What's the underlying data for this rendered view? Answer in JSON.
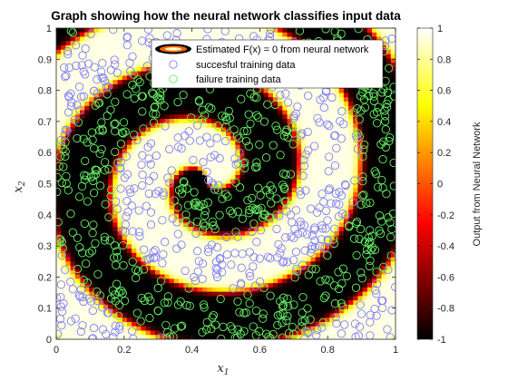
{
  "chart_data": {
    "type": "contour",
    "title": "Graph showing how the neural network classifies input data",
    "xlabel": "x",
    "xlabel_sub": "1",
    "ylabel": "x",
    "ylabel_sub": "2",
    "xlim": [
      0,
      1
    ],
    "ylim": [
      0,
      1
    ],
    "xticks": [
      0,
      0.2,
      0.4,
      0.6,
      0.8,
      1
    ],
    "xtick_labels": [
      "0",
      "0.2",
      "0.4",
      "0.6",
      "0.8",
      "1"
    ],
    "yticks": [
      0,
      0.1,
      0.2,
      0.3,
      0.4,
      0.5,
      0.6,
      0.7,
      0.8,
      0.9,
      1
    ],
    "ytick_labels": [
      "0",
      "0.1",
      "0.2",
      "0.3",
      "0.4",
      "0.5",
      "0.6",
      "0.7",
      "0.8",
      "0.9",
      "1"
    ],
    "colorbar": {
      "label": "Output from Neural Network",
      "range": [
        -1,
        1
      ],
      "ticks": [
        -1,
        -0.8,
        -0.6,
        -0.4,
        -0.2,
        0,
        0.2,
        0.4,
        0.6,
        0.8,
        1
      ],
      "tick_labels": [
        "-1",
        "-0.8",
        "-0.6",
        "-0.4",
        "-0.2",
        "0",
        "0.2",
        "0.4",
        "0.6",
        "0.8",
        "1"
      ],
      "colormap": "hot"
    },
    "legend": {
      "placement": "top-right",
      "entries": [
        {
          "label": "Estimated F(x) = 0 from neural network",
          "style": "contour-line"
        },
        {
          "label": "succesful training data",
          "style": "circle",
          "color": "#8080ff"
        },
        {
          "label": "failure training data",
          "style": "circle",
          "color": "#66ee66"
        }
      ]
    },
    "spiral_model": {
      "center": [
        0.44,
        0.52
      ],
      "growth_per_radian": 0.0577,
      "positive_class_output": 0.95,
      "negative_class_output": -1
    },
    "series": [
      {
        "name": "succesful training data",
        "marker": "circle",
        "color": "#8080ff",
        "approx_count": 500
      },
      {
        "name": "failure training data",
        "marker": "circle",
        "color": "#66ee66",
        "approx_count": 500
      }
    ]
  }
}
